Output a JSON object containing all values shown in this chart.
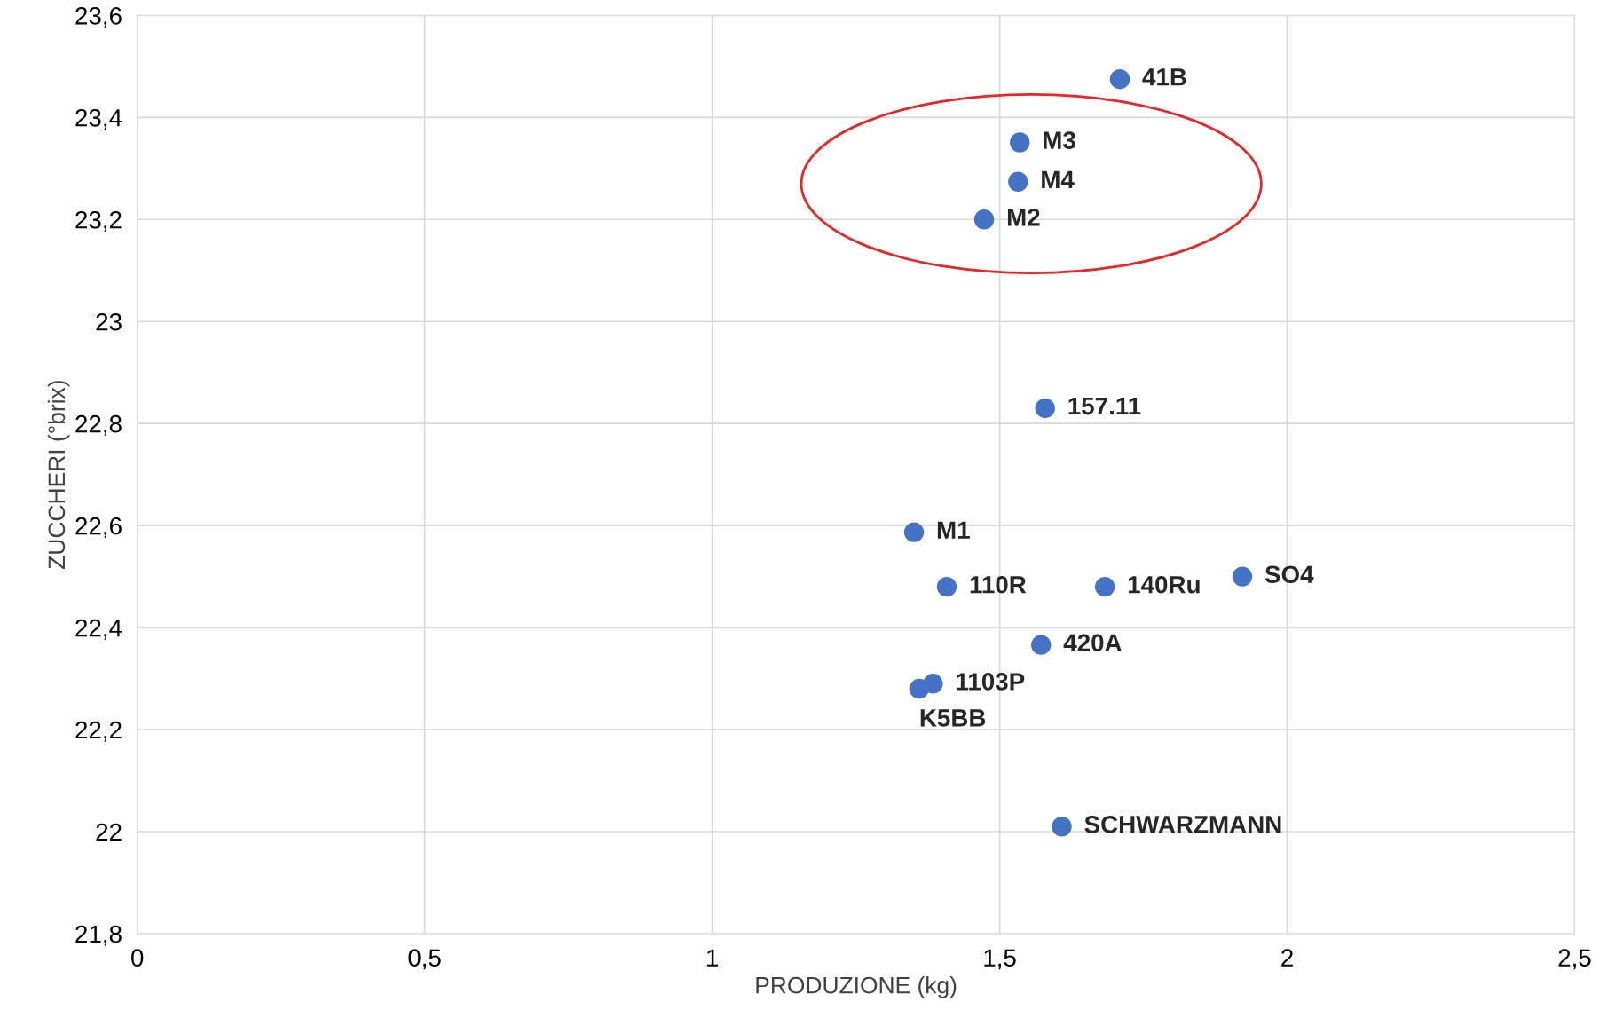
{
  "chart_data": {
    "type": "scatter",
    "xlabel": "PRODUZIONE (kg)",
    "ylabel": "ZUCCHERI (°brix)",
    "x": [
      1.709,
      1.535,
      1.532,
      1.473,
      1.579,
      1.351,
      1.408,
      1.683,
      1.922,
      1.572,
      1.384,
      1.36,
      1.608
    ],
    "series": [
      {
        "color": "#4472c4",
        "values": [
          23.475,
          23.351,
          23.274,
          23.2,
          22.83,
          22.587,
          22.48,
          22.48,
          22.5,
          22.366,
          22.29,
          22.28,
          22.01
        ]
      }
    ],
    "annotations": [
      {
        "text": "41B",
        "x": 1.709,
        "y": 23.475
      },
      {
        "text": "M3",
        "x": 1.535,
        "y": 23.351
      },
      {
        "text": "M4",
        "x": 1.532,
        "y": 23.274
      },
      {
        "text": "M2",
        "x": 1.473,
        "y": 23.2
      },
      {
        "text": "157.11",
        "x": 1.579,
        "y": 22.83
      },
      {
        "text": "M1",
        "x": 1.351,
        "y": 22.587
      },
      {
        "text": "110R",
        "x": 1.408,
        "y": 22.48
      },
      {
        "text": "140Ru",
        "x": 1.683,
        "y": 22.48
      },
      {
        "text": "SO4",
        "x": 1.922,
        "y": 22.5
      },
      {
        "text": "420A",
        "x": 1.572,
        "y": 22.366
      },
      {
        "text": "1103P",
        "x": 1.384,
        "y": 22.29
      },
      {
        "text": "K5BB",
        "x": 1.36,
        "y": 22.28
      },
      {
        "text": "SCHWARZMANN",
        "x": 1.608,
        "y": 22.01
      }
    ],
    "xlim": [
      0,
      2.5
    ],
    "ylim": [
      21.8,
      23.6
    ],
    "xticks": [
      0,
      {
        "value": 0.5,
        "label": "0,5"
      },
      1,
      {
        "value": 1.5,
        "label": "1,5"
      },
      2,
      {
        "value": 2.5,
        "label": "2,5"
      }
    ],
    "yticks": [
      {
        "value": 21.8,
        "label": "21,8"
      },
      22,
      {
        "value": 22.2,
        "label": "22,2"
      },
      {
        "value": 22.4,
        "label": "22,4"
      },
      {
        "value": 22.6,
        "label": "22,6"
      },
      {
        "value": 22.8,
        "label": "22,8"
      },
      23,
      {
        "value": 23.2,
        "label": "23,2"
      },
      {
        "value": 23.4,
        "label": "23,4"
      },
      {
        "value": 23.6,
        "label": "23,6"
      }
    ],
    "grid": true,
    "marker": "circle",
    "legend": false
  }
}
